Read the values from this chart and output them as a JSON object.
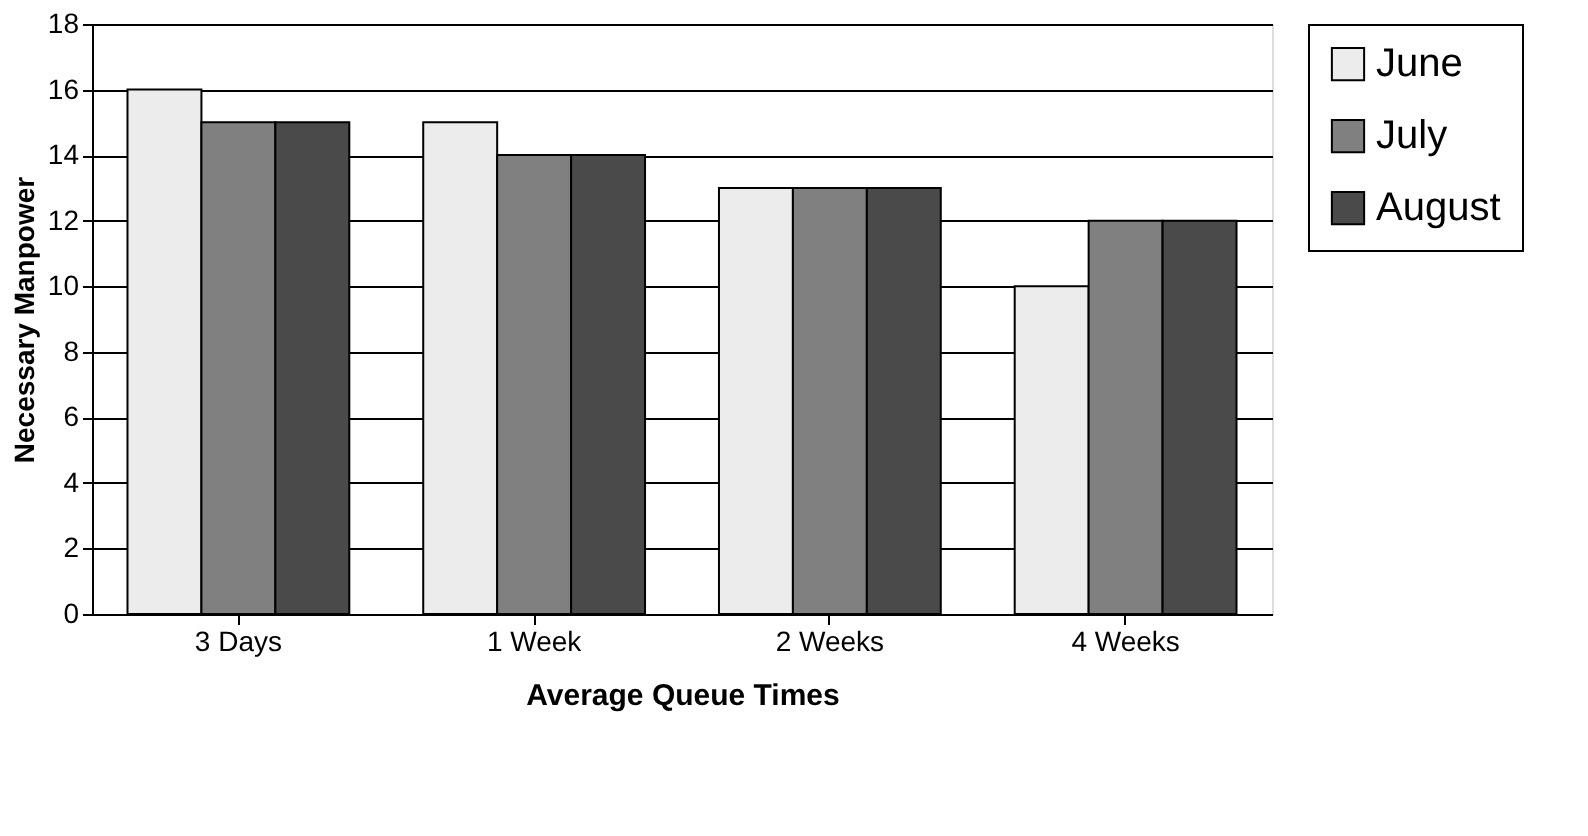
{
  "chart_data": {
    "type": "bar",
    "xlabel": "Average Queue Times",
    "ylabel": "Necessary Manpower",
    "categories": [
      "3 Days",
      "1 Week",
      "2 Weeks",
      "4 Weeks"
    ],
    "series": [
      {
        "name": "June",
        "color": "#ececec",
        "values": [
          16,
          15,
          13,
          10
        ]
      },
      {
        "name": "July",
        "color": "#808080",
        "values": [
          15,
          14,
          13,
          12
        ]
      },
      {
        "name": "August",
        "color": "#4a4a4a",
        "values": [
          15,
          14,
          13,
          12
        ]
      }
    ],
    "ylim": [
      0,
      18
    ],
    "yticks": [
      0,
      2,
      4,
      6,
      8,
      10,
      12,
      14,
      16,
      18
    ],
    "grid": "y",
    "legend": "right"
  }
}
